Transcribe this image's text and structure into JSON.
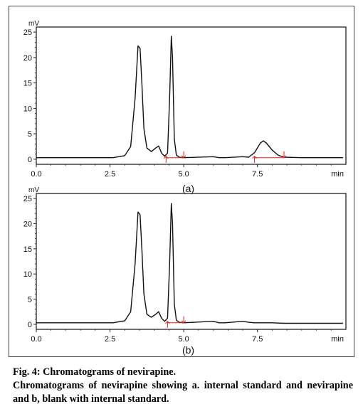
{
  "figure": {
    "caption_title": "Fig. 4:  Chromatograms of nevirapine.",
    "caption_text": "Chromatograms of nevirapine showing a. internal standard and nevirapine and b, blank with internal standard."
  },
  "colors": {
    "trace": "#111111",
    "axis": "#222222",
    "baseline_marker": "#e0201a"
  },
  "chart_data": [
    {
      "type": "line",
      "panel_label": "(a)",
      "ylabel": "mV",
      "xlabel": "min",
      "xlim": [
        0,
        10.5
      ],
      "ylim": [
        -1,
        26
      ],
      "x_ticks": [
        0,
        2.5,
        5,
        7.5
      ],
      "x_tick_labels": [
        "0.0",
        "2.5",
        "5.0",
        "7.5"
      ],
      "y_ticks": [
        0,
        5,
        10,
        15,
        20,
        25
      ],
      "y_tick_labels": [
        "0",
        "5",
        "10",
        "15",
        "20",
        "25"
      ],
      "series": [
        {
          "x": [
            0.0,
            2.6,
            3.0,
            3.2,
            3.35,
            3.45,
            3.52,
            3.58,
            3.65,
            3.75,
            3.9,
            4.05,
            4.15,
            4.25,
            4.35,
            4.45,
            4.52,
            4.58,
            4.62,
            4.68,
            4.75,
            4.85,
            5.0,
            6.0,
            6.2,
            6.4,
            7.0,
            7.2,
            7.4,
            7.6,
            7.7,
            7.8,
            8.0,
            8.2,
            8.4,
            9.0,
            10.4
          ],
          "y": [
            0.3,
            0.3,
            0.7,
            2.5,
            12.0,
            22.3,
            21.8,
            15.0,
            6.0,
            2.2,
            1.5,
            2.2,
            2.6,
            1.2,
            0.6,
            1.2,
            12.0,
            24.2,
            20.0,
            4.0,
            0.8,
            0.4,
            0.3,
            0.5,
            0.3,
            0.3,
            0.5,
            0.4,
            1.3,
            3.2,
            3.6,
            3.2,
            1.8,
            0.8,
            0.4,
            0.3,
            0.3
          ]
        }
      ],
      "baseline_markers": [
        {
          "x_start": 4.4,
          "x_end": 5.0,
          "y": 0.3
        },
        {
          "x_start": 7.4,
          "x_end": 8.4,
          "y": 0.3
        }
      ]
    },
    {
      "type": "line",
      "panel_label": "(b)",
      "ylabel": "mV",
      "xlabel": "min",
      "xlim": [
        0,
        10.5
      ],
      "ylim": [
        -1,
        26
      ],
      "x_ticks": [
        0,
        2.5,
        5,
        7.5
      ],
      "x_tick_labels": [
        "0.0",
        "2.5",
        "5.0",
        "7.5"
      ],
      "y_ticks": [
        0,
        5,
        10,
        15,
        20,
        25
      ],
      "y_tick_labels": [
        "0",
        "5",
        "10",
        "15",
        "20",
        "25"
      ],
      "series": [
        {
          "x": [
            0.0,
            2.6,
            3.0,
            3.2,
            3.35,
            3.45,
            3.52,
            3.58,
            3.65,
            3.75,
            3.9,
            4.05,
            4.15,
            4.25,
            4.35,
            4.45,
            4.52,
            4.58,
            4.62,
            4.68,
            4.75,
            4.85,
            5.0,
            6.0,
            6.2,
            6.4,
            7.0,
            7.2,
            7.4,
            8.0,
            8.4,
            10.4
          ],
          "y": [
            0.3,
            0.3,
            0.7,
            2.5,
            12.0,
            22.3,
            21.8,
            15.0,
            6.0,
            2.0,
            1.4,
            2.0,
            2.5,
            1.2,
            0.6,
            1.2,
            12.0,
            24.0,
            20.0,
            4.0,
            0.8,
            0.4,
            0.3,
            0.6,
            0.3,
            0.3,
            0.6,
            0.4,
            0.3,
            0.3,
            0.2,
            0.2
          ]
        }
      ],
      "baseline_markers": [
        {
          "x_start": 4.45,
          "x_end": 5.0,
          "y": 0.3
        }
      ]
    }
  ]
}
